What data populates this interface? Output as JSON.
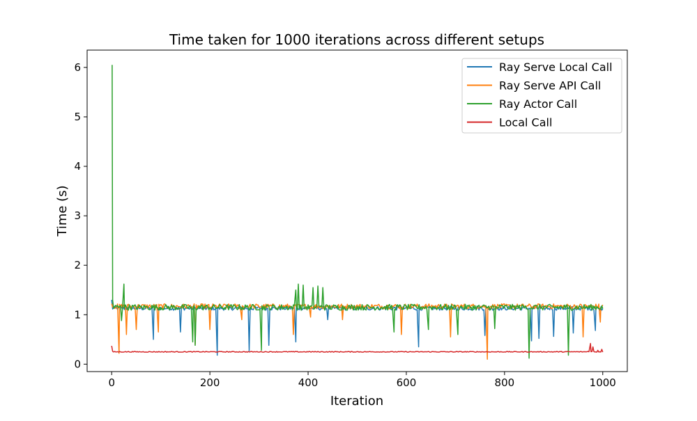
{
  "chart_data": {
    "type": "line",
    "title": "Time taken for 1000 iterations across different setups",
    "xlabel": "Iteration",
    "ylabel": "Time (s)",
    "xlim": [
      -50,
      1050
    ],
    "ylim": [
      -0.15,
      6.35
    ],
    "xticks": [
      0,
      200,
      400,
      600,
      800,
      1000
    ],
    "yticks": [
      0,
      1,
      2,
      3,
      4,
      5,
      6
    ],
    "grid": false,
    "legend_position": "top-right",
    "series": [
      {
        "name": "Ray Serve Local Call",
        "color": "#1f77b4",
        "base": 1.13,
        "noise": 0.04,
        "points": [
          [
            0,
            1.3
          ],
          [
            1000,
            1.12
          ]
        ],
        "spikes": [
          [
            85,
            0.5
          ],
          [
            140,
            0.65
          ],
          [
            215,
            0.18
          ],
          [
            280,
            0.27
          ],
          [
            320,
            0.38
          ],
          [
            375,
            0.45
          ],
          [
            440,
            0.9
          ],
          [
            625,
            0.35
          ],
          [
            760,
            0.58
          ],
          [
            855,
            0.47
          ],
          [
            870,
            0.52
          ],
          [
            900,
            0.56
          ],
          [
            940,
            0.63
          ],
          [
            985,
            0.68
          ]
        ]
      },
      {
        "name": "Ray Serve API Call",
        "color": "#ff7f0e",
        "base": 1.17,
        "noise": 0.05,
        "points": [
          [
            0,
            1.22
          ],
          [
            1000,
            1.2
          ]
        ],
        "spikes": [
          [
            15,
            0.22
          ],
          [
            30,
            0.6
          ],
          [
            50,
            0.7
          ],
          [
            95,
            0.65
          ],
          [
            170,
            0.4
          ],
          [
            200,
            0.7
          ],
          [
            265,
            0.9
          ],
          [
            370,
            0.6
          ],
          [
            405,
            0.95
          ],
          [
            470,
            0.9
          ],
          [
            590,
            0.6
          ],
          [
            690,
            0.55
          ],
          [
            765,
            0.1
          ],
          [
            960,
            0.55
          ],
          [
            995,
            0.85
          ]
        ]
      },
      {
        "name": "Ray Actor Call",
        "color": "#2ca02c",
        "base": 1.15,
        "noise": 0.06,
        "points": [
          [
            0,
            1.25
          ],
          [
            1,
            6.05
          ],
          [
            2,
            1.3
          ],
          [
            25,
            1.62
          ],
          [
            375,
            1.5
          ],
          [
            380,
            1.62
          ],
          [
            390,
            1.6
          ],
          [
            410,
            1.55
          ],
          [
            420,
            1.58
          ],
          [
            430,
            1.55
          ]
        ],
        "spikes": [
          [
            20,
            0.88
          ],
          [
            165,
            0.45
          ],
          [
            170,
            0.38
          ],
          [
            305,
            0.28
          ],
          [
            575,
            0.65
          ],
          [
            645,
            0.7
          ],
          [
            705,
            0.6
          ],
          [
            780,
            0.72
          ],
          [
            850,
            0.12
          ],
          [
            930,
            0.18
          ]
        ]
      },
      {
        "name": "Local Call",
        "color": "#d62728",
        "base": 0.25,
        "noise": 0.008,
        "points": [
          [
            0,
            0.37
          ],
          [
            2,
            0.26
          ],
          [
            970,
            0.26
          ],
          [
            975,
            0.42
          ],
          [
            980,
            0.35
          ],
          [
            990,
            0.28
          ],
          [
            998,
            0.3
          ]
        ],
        "spikes": []
      }
    ]
  }
}
